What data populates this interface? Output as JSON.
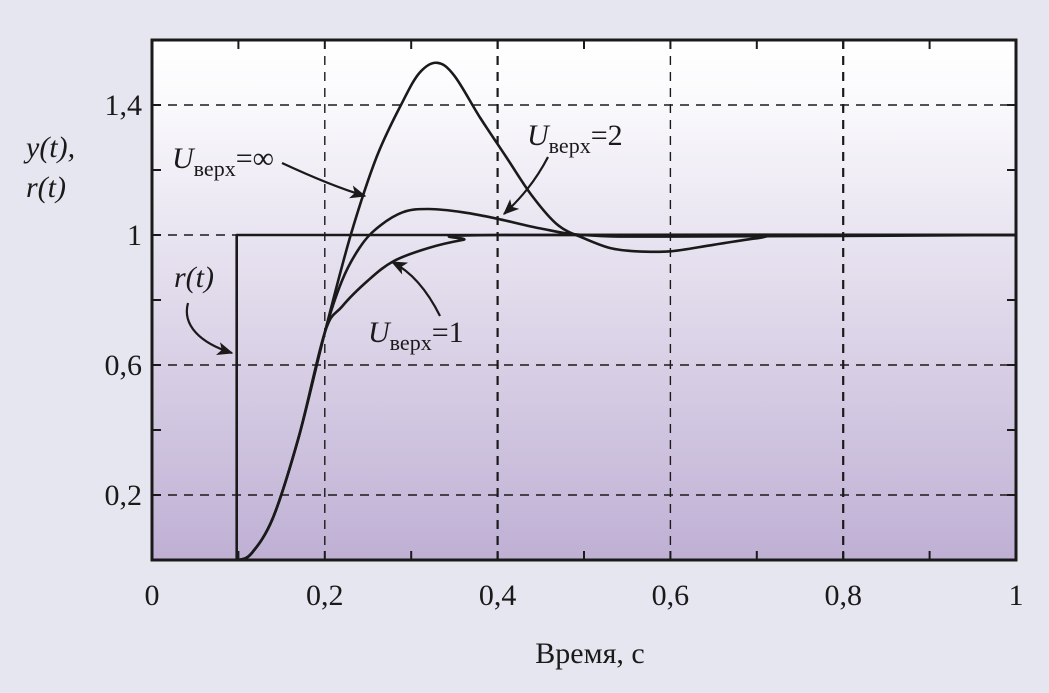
{
  "chart_data": {
    "type": "line",
    "title": "",
    "xlabel": "Время, с",
    "ylabel_parts": [
      "y(t),",
      "r(t)"
    ],
    "xlim": [
      0,
      1
    ],
    "ylim": [
      0,
      1.6
    ],
    "xticks": [
      0,
      0.2,
      0.4,
      0.6,
      0.8,
      1
    ],
    "xtick_labels": [
      "0",
      "0,2",
      "0,4",
      "0,6",
      "0,8",
      "1"
    ],
    "yticks": [
      0.2,
      0.6,
      1,
      1.4
    ],
    "ytick_labels": [
      "0,2",
      "0,6",
      "1",
      "1,4"
    ],
    "grid": true,
    "series": [
      {
        "name": "r(t)",
        "label_main": "r(t)",
        "points": [
          [
            0,
            0
          ],
          [
            0.098,
            0
          ],
          [
            0.098,
            1
          ],
          [
            1,
            1
          ]
        ]
      },
      {
        "name": "U_верх = ∞",
        "label_main": "U",
        "label_sub": "верх",
        "label_tail": "=∞",
        "points": [
          [
            0.1,
            0
          ],
          [
            0.115,
            0.02
          ],
          [
            0.14,
            0.13
          ],
          [
            0.17,
            0.38
          ],
          [
            0.2,
            0.7
          ],
          [
            0.23,
            1.0
          ],
          [
            0.26,
            1.24
          ],
          [
            0.29,
            1.41
          ],
          [
            0.31,
            1.5
          ],
          [
            0.33,
            1.53
          ],
          [
            0.35,
            1.49
          ],
          [
            0.38,
            1.36
          ],
          [
            0.41,
            1.24
          ],
          [
            0.44,
            1.12
          ],
          [
            0.47,
            1.03
          ],
          [
            0.5,
            0.99
          ],
          [
            0.53,
            0.96
          ],
          [
            0.56,
            0.95
          ],
          [
            0.6,
            0.95
          ],
          [
            0.65,
            0.97
          ],
          [
            0.7,
            0.99
          ],
          [
            0.75,
            1.0
          ],
          [
            1,
            1
          ]
        ]
      },
      {
        "name": "U_верх = 2",
        "label_main": "U",
        "label_sub": "верх",
        "label_tail": "=2",
        "points": [
          [
            0.1,
            0
          ],
          [
            0.115,
            0.02
          ],
          [
            0.14,
            0.13
          ],
          [
            0.17,
            0.38
          ],
          [
            0.2,
            0.7
          ],
          [
            0.22,
            0.86
          ],
          [
            0.24,
            0.96
          ],
          [
            0.26,
            1.02
          ],
          [
            0.29,
            1.07
          ],
          [
            0.32,
            1.08
          ],
          [
            0.36,
            1.07
          ],
          [
            0.4,
            1.05
          ],
          [
            0.45,
            1.02
          ],
          [
            0.5,
            1.0
          ],
          [
            0.6,
            0.995
          ],
          [
            1,
            1
          ]
        ]
      },
      {
        "name": "U_верх = 1",
        "label_main": "U",
        "label_sub": "верх",
        "label_tail": "=1",
        "points": [
          [
            0.1,
            0
          ],
          [
            0.115,
            0.02
          ],
          [
            0.14,
            0.13
          ],
          [
            0.17,
            0.38
          ],
          [
            0.2,
            0.7
          ],
          [
            0.22,
            0.78
          ],
          [
            0.25,
            0.86
          ],
          [
            0.28,
            0.92
          ],
          [
            0.32,
            0.96
          ],
          [
            0.36,
            0.985
          ],
          [
            0.4,
            1.0
          ],
          [
            1,
            1
          ]
        ]
      }
    ],
    "colors": {
      "line": "#1a1a1a",
      "grid": "#1a1a1a",
      "plot_bg_top": "#ffffff",
      "plot_bg_bottom": "#bfb0d4",
      "page_bg": "#e6e6f0"
    }
  }
}
